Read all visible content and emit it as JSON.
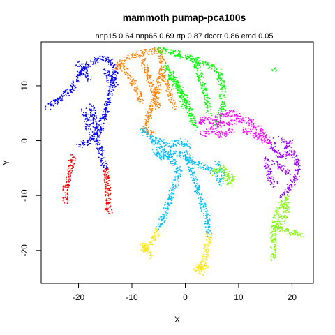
{
  "chart_data": {
    "type": "scatter",
    "title": "mammoth pumap-pca100s",
    "subtitle": "nnp15 0.64 nnp65 0.69 rtp 0.87 dcorr 0.86 emd 0.05",
    "xlabel": "X",
    "ylabel": "Y",
    "xlim": [
      -27,
      24
    ],
    "ylim": [
      -26,
      18
    ],
    "xticks": [
      -20,
      -10,
      0,
      10,
      20
    ],
    "yticks": [
      -20,
      -10,
      0,
      10
    ],
    "xtick_labels": [
      "-20",
      "-10",
      "0",
      "10",
      "20"
    ],
    "ytick_labels": [
      "-20",
      "-10",
      "0",
      "10"
    ],
    "grid": false,
    "legend": "none",
    "series": [
      {
        "color": "#0000ff",
        "segments": [
          [
            [
              -26,
              6
            ],
            [
              -23,
              8
            ],
            [
              -21,
              9.5
            ],
            [
              -20,
              12
            ],
            [
              -18,
              14
            ],
            [
              -16,
              15
            ],
            [
              -14,
              14.5
            ],
            [
              -13,
              13
            ],
            [
              -14,
              9
            ],
            [
              -15,
              5
            ],
            [
              -16,
              2
            ],
            [
              -18,
              0
            ],
            [
              -20,
              -1
            ]
          ],
          [
            [
              -17.5,
              6.5
            ],
            [
              -17,
              3
            ],
            [
              -16.5,
              0
            ],
            [
              -15.5,
              -3
            ],
            [
              -15,
              -5
            ]
          ],
          [
            [
              -19,
              5.5
            ],
            [
              -18.5,
              4
            ],
            [
              -18,
              2
            ]
          ],
          [
            [
              -20,
              14
            ],
            [
              -19,
              13
            ],
            [
              -18,
              11
            ]
          ],
          [
            [
              -15,
              13
            ],
            [
              -14,
              11
            ],
            [
              -13,
              10
            ]
          ]
        ]
      },
      {
        "color": "#ff0000",
        "segments": [
          [
            [
              -21,
              -2.5
            ],
            [
              -21.5,
              -5
            ],
            [
              -22,
              -7
            ],
            [
              -22.5,
              -9
            ],
            [
              -22.5,
              -11
            ]
          ],
          [
            [
              -15,
              -5
            ],
            [
              -14.5,
              -8
            ],
            [
              -14.5,
              -10
            ],
            [
              -14.5,
              -12.5
            ],
            [
              -14,
              -13
            ]
          ]
        ]
      },
      {
        "color": "#ff7f00",
        "segments": [
          [
            [
              -13,
              13
            ],
            [
              -11,
              15
            ],
            [
              -8,
              16
            ],
            [
              -5,
              16.5
            ],
            [
              -4,
              14
            ],
            [
              -5,
              10
            ],
            [
              -6,
              7
            ],
            [
              -7,
              4
            ],
            [
              -7.5,
              2
            ],
            [
              -6,
              1
            ]
          ],
          [
            [
              -12,
              14
            ],
            [
              -10,
              11
            ],
            [
              -9,
              9
            ],
            [
              -8,
              7
            ]
          ],
          [
            [
              -8,
              15
            ],
            [
              -7,
              12
            ],
            [
              -6,
              9
            ],
            [
              -5,
              6
            ]
          ],
          [
            [
              -4,
              12
            ],
            [
              -3,
              9
            ],
            [
              -2,
              6
            ]
          ]
        ]
      },
      {
        "color": "#00ff00",
        "segments": [
          [
            [
              -5,
              16.5
            ],
            [
              -2,
              16
            ],
            [
              1,
              15
            ],
            [
              4,
              14
            ],
            [
              6,
              13
            ],
            [
              7,
              10
            ],
            [
              7,
              6
            ],
            [
              6,
              3
            ]
          ],
          [
            [
              -4,
              14
            ],
            [
              -2,
              11
            ],
            [
              0,
              8
            ],
            [
              1,
              5
            ],
            [
              2,
              2
            ]
          ],
          [
            [
              2,
              14
            ],
            [
              3,
              11
            ],
            [
              4,
              8
            ],
            [
              4.5,
              5
            ]
          ],
          [
            [
              -3,
              12
            ],
            [
              -1,
              9
            ],
            [
              0,
              6
            ]
          ],
          [
            [
              16.5,
              12.7
            ],
            [
              17,
              13
            ]
          ]
        ]
      },
      {
        "color": "#ff00ff",
        "segments": [
          [
            [
              2,
              3
            ],
            [
              4,
              4
            ],
            [
              6,
              3
            ],
            [
              8,
              3
            ],
            [
              10,
              4
            ],
            [
              12,
              3.5
            ],
            [
              14,
              2
            ],
            [
              15,
              0.5
            ],
            [
              16,
              -0.5
            ]
          ],
          [
            [
              3,
              1
            ],
            [
              5,
              2
            ],
            [
              7,
              1
            ],
            [
              9,
              2
            ]
          ],
          [
            [
              6,
              4
            ],
            [
              8,
              5
            ],
            [
              10,
              5
            ]
          ],
          [
            [
              11,
              2
            ],
            [
              13,
              1
            ],
            [
              15,
              0
            ]
          ]
        ]
      },
      {
        "color": "#00bfff",
        "segments": [
          [
            [
              -8,
              2
            ],
            [
              -6,
              0
            ],
            [
              -4,
              -2
            ],
            [
              -2,
              -4
            ],
            [
              -1,
              -6
            ],
            [
              -2,
              -8
            ],
            [
              -3,
              -11
            ],
            [
              -4,
              -14
            ],
            [
              -5,
              -16
            ]
          ],
          [
            [
              -6,
              -2
            ],
            [
              -4,
              -3
            ],
            [
              -2,
              -2
            ],
            [
              0,
              -3
            ],
            [
              2,
              -4
            ],
            [
              4,
              -5
            ],
            [
              6,
              -6
            ],
            [
              7,
              -8
            ]
          ],
          [
            [
              0,
              -2
            ],
            [
              1,
              -5
            ],
            [
              2,
              -8
            ],
            [
              3,
              -11
            ],
            [
              4,
              -14
            ],
            [
              4.5,
              -17
            ]
          ],
          [
            [
              -5,
              0
            ],
            [
              -3,
              -1
            ],
            [
              -1,
              0
            ],
            [
              1,
              -1
            ]
          ],
          [
            [
              6,
              -4
            ],
            [
              7,
              -6
            ]
          ]
        ]
      },
      {
        "color": "#9b00ff",
        "segments": [
          [
            [
              16,
              0
            ],
            [
              17,
              -2
            ],
            [
              18,
              -3
            ],
            [
              20,
              -2
            ],
            [
              21,
              -4
            ],
            [
              21,
              -6
            ],
            [
              20,
              -8
            ],
            [
              19,
              -9
            ],
            [
              18,
              -10
            ]
          ],
          [
            [
              15,
              -3
            ],
            [
              15.5,
              -5
            ],
            [
              16,
              -7
            ],
            [
              17,
              -8
            ]
          ],
          [
            [
              18,
              0.5
            ],
            [
              19,
              -1
            ],
            [
              20,
              0
            ]
          ],
          [
            [
              16.5,
              -4
            ],
            [
              18,
              -5
            ],
            [
              19.5,
              -6
            ]
          ]
        ]
      },
      {
        "color": "#ffe600",
        "segments": [
          [
            [
              -5,
              -16
            ],
            [
              -6,
              -18
            ],
            [
              -7,
              -19
            ],
            [
              -7.5,
              -20
            ],
            [
              -8,
              -19
            ],
            [
              -6.5,
              -21
            ]
          ],
          [
            [
              4.5,
              -17
            ],
            [
              4,
              -20
            ],
            [
              3.5,
              -22
            ],
            [
              3,
              -24
            ],
            [
              2,
              -23
            ],
            [
              4.5,
              -23
            ]
          ]
        ]
      },
      {
        "color": "#7fff00",
        "segments": [
          [
            [
              5,
              -6
            ],
            [
              6,
              -5.5
            ],
            [
              7,
              -5
            ],
            [
              8,
              -6
            ],
            [
              9,
              -7
            ],
            [
              8.5,
              -8
            ],
            [
              7.5,
              -7
            ]
          ],
          [
            [
              19,
              -10
            ],
            [
              18,
              -12
            ],
            [
              17,
              -14
            ],
            [
              16.5,
              -16
            ],
            [
              16.5,
              -18
            ],
            [
              16.5,
              -21.5
            ]
          ],
          [
            [
              19,
              -11
            ],
            [
              19,
              -13
            ],
            [
              18,
              -15
            ],
            [
              17,
              -16
            ],
            [
              19,
              -16.5
            ],
            [
              22,
              -17.2
            ]
          ]
        ]
      }
    ]
  }
}
